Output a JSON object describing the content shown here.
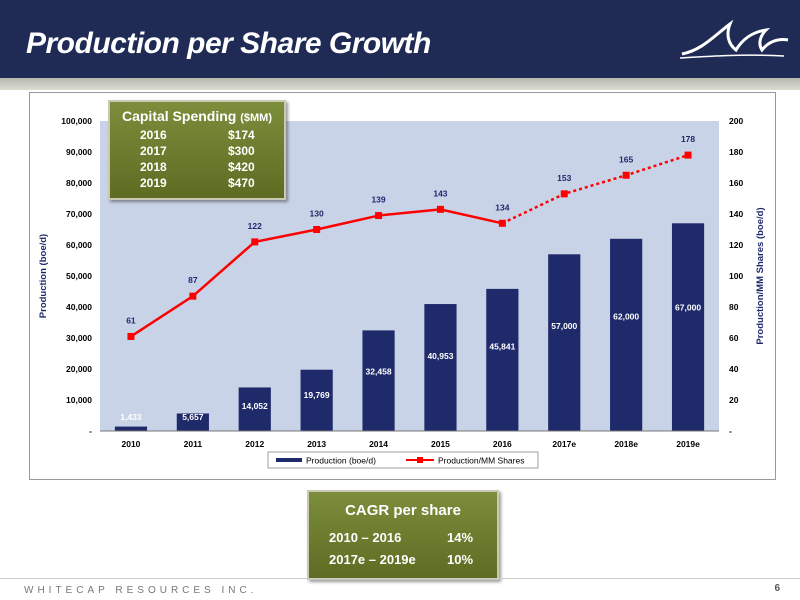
{
  "header": {
    "title": "Production per Share Growth"
  },
  "capital_box": {
    "title_main": "Capital Spending",
    "title_unit": "($MM)",
    "rows": [
      {
        "year": "2016",
        "amount": "$174"
      },
      {
        "year": "2017",
        "amount": "$300"
      },
      {
        "year": "2018",
        "amount": "$420"
      },
      {
        "year": "2019",
        "amount": "$470"
      }
    ]
  },
  "cagr_box": {
    "title": "CAGR per share",
    "rows": [
      {
        "label": "2010 – 2016",
        "value": "14%"
      },
      {
        "label": "2017e – 2019e",
        "value": "10%"
      }
    ]
  },
  "footer": {
    "company": "WHITECAP RESOURCES INC.",
    "page": "6"
  },
  "colors": {
    "header_bg": "#1f2a55",
    "bar": "#1f2a6b",
    "line": "#ff0000",
    "plot_bg": "#c9d3e8",
    "box": "#6e7d2f"
  },
  "chart_data": {
    "type": "bar",
    "categories": [
      "2010",
      "2011",
      "2012",
      "2013",
      "2014",
      "2015",
      "2016",
      "2017e",
      "2018e",
      "2019e"
    ],
    "series": [
      {
        "name": "Production (boe/d)",
        "type": "bar",
        "axis": "left",
        "values": [
          1433,
          5657,
          14052,
          19769,
          32458,
          40953,
          45841,
          57000,
          62000,
          67000
        ],
        "labels": [
          "1,433",
          "5,657",
          "14,052",
          "19,769",
          "32,458",
          "40,953",
          "45,841",
          "57,000",
          "62,000",
          "67,000"
        ]
      },
      {
        "name": "Production/MM Shares",
        "type": "line",
        "axis": "right",
        "values": [
          61,
          87,
          122,
          130,
          139,
          143,
          134,
          153,
          165,
          178
        ],
        "labels": [
          "61",
          "87",
          "122",
          "130",
          "139",
          "143",
          "134",
          "153",
          "165",
          "178"
        ],
        "dashed_from_index": 6
      }
    ],
    "ylabel": "Production (boe/d)",
    "y2label": "Production/MM Shares (boe/d)",
    "ylim": [
      0,
      100000
    ],
    "y2lim": [
      0,
      200
    ],
    "yticks": [
      "-",
      "10,000",
      "20,000",
      "30,000",
      "40,000",
      "50,000",
      "60,000",
      "70,000",
      "80,000",
      "90,000",
      "100,000"
    ],
    "y2ticks": [
      "-",
      "20",
      "40",
      "60",
      "80",
      "100",
      "120",
      "140",
      "160",
      "180",
      "200"
    ],
    "grid": false,
    "legend": "bottom"
  }
}
